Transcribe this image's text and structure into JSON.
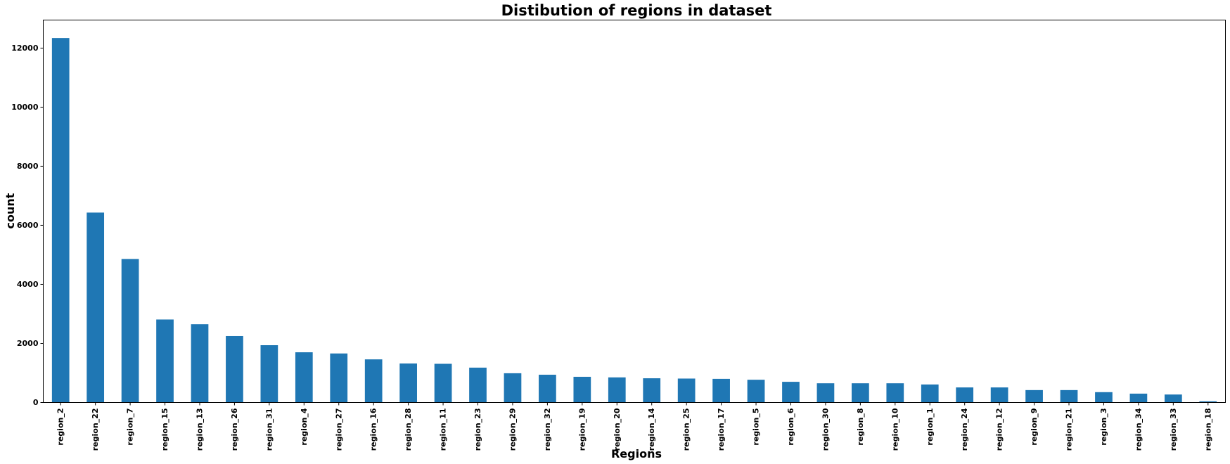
{
  "chart_data": {
    "type": "bar",
    "title": "Distibution of regions in dataset",
    "xlabel": "Regions",
    "ylabel": "count",
    "ylim": [
      0,
      12950
    ],
    "yticks": [
      0,
      2000,
      4000,
      6000,
      8000,
      10000,
      12000
    ],
    "grid": false,
    "bar_color": "#1f77b4",
    "categories": [
      "region_2",
      "region_22",
      "region_7",
      "region_15",
      "region_13",
      "region_26",
      "region_31",
      "region_4",
      "region_27",
      "region_16",
      "region_28",
      "region_11",
      "region_23",
      "region_29",
      "region_32",
      "region_19",
      "region_20",
      "region_14",
      "region_25",
      "region_17",
      "region_5",
      "region_6",
      "region_30",
      "region_8",
      "region_10",
      "region_1",
      "region_24",
      "region_12",
      "region_9",
      "region_21",
      "region_3",
      "region_34",
      "region_33",
      "region_18"
    ],
    "values": [
      12340,
      6430,
      4860,
      2810,
      2650,
      2250,
      1940,
      1700,
      1660,
      1460,
      1320,
      1310,
      1180,
      990,
      940,
      870,
      850,
      820,
      810,
      800,
      770,
      700,
      650,
      650,
      650,
      610,
      510,
      510,
      420,
      420,
      350,
      300,
      270,
      40
    ]
  }
}
